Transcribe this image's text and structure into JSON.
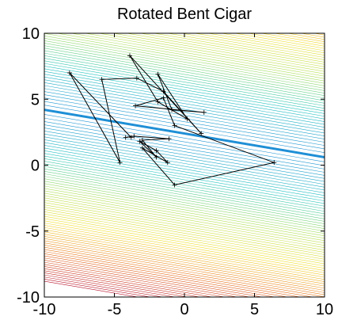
{
  "chart_data": {
    "type": "line",
    "title": "Rotated Bent Cigar",
    "xlabel": "",
    "ylabel": "",
    "xlim": [
      -10,
      10
    ],
    "ylim": [
      -10,
      10
    ],
    "x_ticks": [
      -10,
      -5,
      0,
      5,
      10
    ],
    "y_ticks": [
      -10,
      -5,
      0,
      5,
      10
    ],
    "x_tick_labels": [
      "-10",
      "-5",
      "0",
      "5",
      "10"
    ],
    "y_tick_labels": [
      "-10",
      "-5",
      "0",
      "5",
      "10"
    ],
    "grid": false,
    "legend": "none",
    "background": {
      "kind": "contour",
      "valley_line": {
        "slope": -0.18,
        "intercept": 2.4
      },
      "contour_level_count": 70,
      "contour_color_scale": [
        "#1f8fd6",
        "#22c4c0",
        "#aee05a",
        "#f2df2c",
        "#e8721c",
        "#b8122c"
      ]
    },
    "series": [
      {
        "color": "#000000",
        "x": [
          -3.8,
          -8.2,
          -4.6,
          -5.9,
          -3.4,
          -1.5,
          1.2,
          -3.9,
          -1.9,
          0.2,
          -1.9,
          -0.9,
          1.4,
          -3.5,
          -1.5,
          -0.7,
          6.4,
          -0.7,
          -3.0,
          -1.2,
          -2.0,
          -3.2,
          -2.0,
          -3.0,
          -1.1,
          -3.6,
          -4.2
        ],
        "y": [
          2.1,
          7.0,
          0.2,
          6.5,
          6.6,
          5.6,
          2.4,
          8.3,
          4.8,
          3.5,
          6.9,
          4.2,
          4.0,
          4.5,
          5.1,
          3.0,
          0.2,
          -1.5,
          1.3,
          0.2,
          1.1,
          1.8,
          0.6,
          1.9,
          2.0,
          2.2,
          2.1
        ]
      }
    ]
  }
}
